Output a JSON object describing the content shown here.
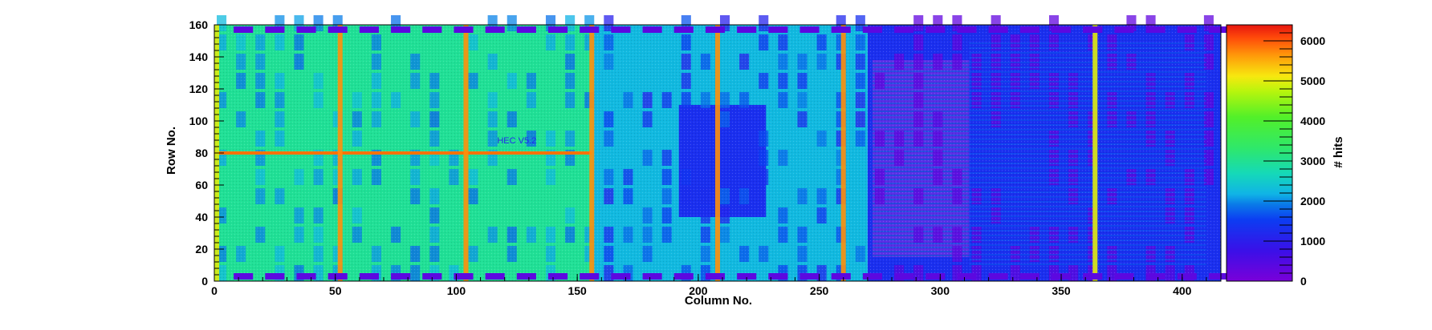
{
  "chart_data": {
    "type": "heatmap",
    "title": "",
    "xlabel": "Column No.",
    "ylabel": "Row No.",
    "zlabel": "# hits",
    "xlim": [
      0,
      416
    ],
    "ylim": [
      0,
      160
    ],
    "zlim": [
      0,
      6400
    ],
    "x_ticks": [
      0,
      50,
      100,
      150,
      200,
      250,
      300,
      350,
      400
    ],
    "y_ticks": [
      0,
      20,
      40,
      60,
      80,
      100,
      120,
      140,
      160
    ],
    "z_ticks": [
      0,
      1000,
      2000,
      3000,
      4000,
      5000,
      6000
    ],
    "colormap": [
      "#7a00d9",
      "#3a10e8",
      "#0c3df2",
      "#0a7be8",
      "#10b4e6",
      "#15d9b8",
      "#2fe86a",
      "#52f029",
      "#b7f50d",
      "#f7e80f",
      "#ff9a0a",
      "#ff4a0a",
      "#e6150f"
    ],
    "hot_columns": [
      1,
      52,
      104,
      156,
      208,
      260,
      364
    ],
    "hot_row": 80,
    "regions": [
      {
        "x": [
          0,
          156
        ],
        "y": [
          0,
          160
        ],
        "level": 2900
      },
      {
        "x": [
          156,
          270
        ],
        "y": [
          0,
          160
        ],
        "level": 2200
      },
      {
        "x": [
          270,
          416
        ],
        "y": [
          0,
          160
        ],
        "level": 900
      },
      {
        "x": [
          192,
          228
        ],
        "y": [
          40,
          110
        ],
        "level": 900
      },
      {
        "x": [
          272,
          312
        ],
        "y": [
          15,
          138
        ],
        "level": 200
      }
    ],
    "annotations": [
      "HEC V5.2"
    ]
  }
}
